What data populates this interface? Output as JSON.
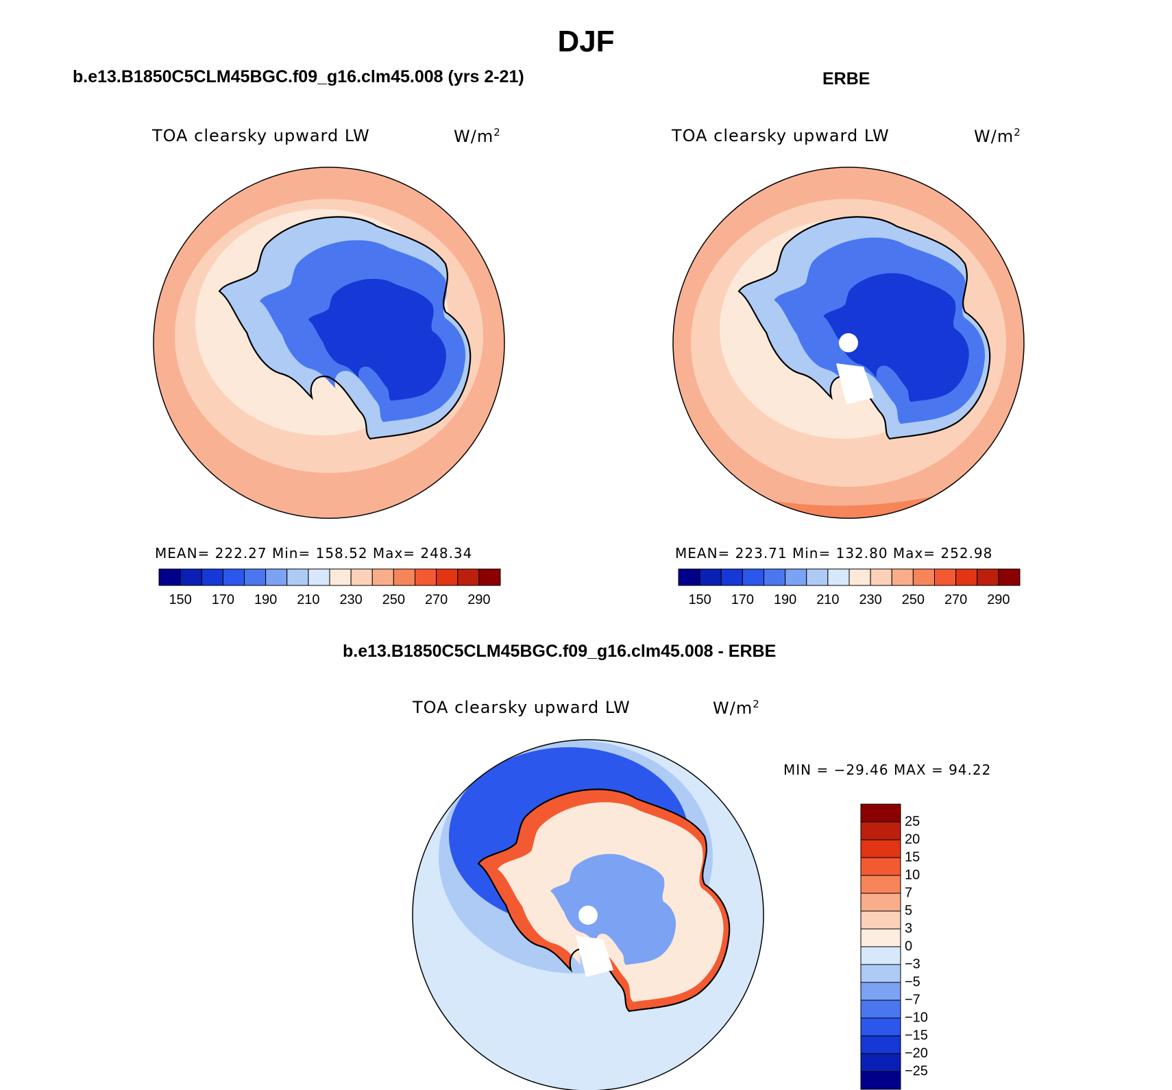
{
  "title": "DJF",
  "panels": [
    {
      "heading": "b.e13.B1850C5CLM45BGC.f09_g16.clm45.008 (yrs 2-21)",
      "variable": "TOA clearsky upward LW",
      "units": "W/m",
      "units_sup": "2",
      "stats": "MEAN= 222.27   Min= 158.52   Max= 248.34"
    },
    {
      "heading": "ERBE",
      "variable": "TOA clearsky upward LW",
      "units": "W/m",
      "units_sup": "2",
      "stats": "MEAN= 223.71   Min= 132.80   Max= 252.98"
    },
    {
      "heading": "b.e13.B1850C5CLM45BGC.f09_g16.clm45.008 - ERBE",
      "variable": "TOA clearsky upward LW",
      "units": "W/m",
      "units_sup": "2",
      "stats": "MIN = −29.46 MAX =  94.22"
    }
  ],
  "abs_colorbar": {
    "colors": [
      "#00008b",
      "#0a20b4",
      "#1538d6",
      "#2c57ec",
      "#4a77f0",
      "#7ca2f4",
      "#aecbf6",
      "#d6e8fa",
      "#fde9d9",
      "#fcd1ba",
      "#f9ad8a",
      "#f7855a",
      "#f45a32",
      "#e23514",
      "#bd1f0d",
      "#8b0000"
    ],
    "tick_labels": [
      "150",
      "170",
      "190",
      "210",
      "230",
      "250",
      "270",
      "290"
    ]
  },
  "diff_colorbar": {
    "colors": [
      "#00008b",
      "#0a20b4",
      "#1538d6",
      "#2c57ec",
      "#4a77f0",
      "#7ca2f4",
      "#aecbf6",
      "#d6e8fa",
      "#fdece0",
      "#fcd1ba",
      "#f9ad8a",
      "#f7855a",
      "#f45a32",
      "#e23514",
      "#bd1f0d",
      "#8b0000"
    ],
    "tick_labels": [
      "25",
      "20",
      "15",
      "10",
      "7",
      "5",
      "3",
      "0",
      "−3",
      "−5",
      "−7",
      "−10",
      "−15",
      "−20",
      "−25"
    ]
  },
  "colors": {
    "ocean_warm": "#f9b193",
    "ocean_light": "#fcd1ba",
    "land_edge": "#aecbf6",
    "land_mid": "#4a77f0",
    "land_core": "#1538d6",
    "diff_ocean": "#d6e8fa",
    "diff_ring": "#2c57ec",
    "diff_land": "#fde9d9",
    "diff_coast": "#f45a32"
  }
}
